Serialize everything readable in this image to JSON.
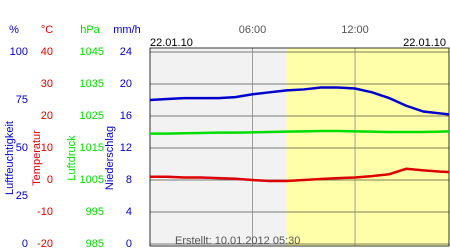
{
  "chart_data": {
    "type": "line",
    "date_left": "22.01.10",
    "date_right": "22.01.10",
    "footer": "Erstellt: 10.01.2012 05:30",
    "x": [
      0,
      1,
      2,
      3,
      4,
      5,
      6,
      7,
      8,
      9,
      10,
      11,
      12,
      13,
      14,
      15,
      16,
      17,
      17.5
    ],
    "xlim": [
      0,
      17.5
    ],
    "xticks": [
      {
        "value": 6,
        "label": "06:00"
      },
      {
        "value": 12,
        "label": "12:00"
      }
    ],
    "daylight_start": 8,
    "axes": [
      {
        "unit": "%",
        "title": "Luftfeuchtigkeit",
        "color": "#0000cc",
        "ylim": [
          0,
          100
        ],
        "yticks": [
          0,
          25,
          50,
          75,
          100
        ],
        "values": [
          75,
          75.5,
          76,
          76,
          76,
          76.5,
          78,
          79,
          80,
          80.5,
          81.5,
          81.5,
          81,
          79,
          76,
          72,
          69,
          68,
          67.5
        ]
      },
      {
        "unit": "°C",
        "title": "Temperatur",
        "color": "#dd0000",
        "ylim": [
          -20,
          40
        ],
        "yticks": [
          -20,
          -10,
          0,
          10,
          20,
          30,
          40
        ],
        "values": [
          1,
          1,
          0.8,
          0.8,
          0.6,
          0.4,
          0,
          -0.3,
          -0.3,
          0,
          0.3,
          0.6,
          0.8,
          1.2,
          1.8,
          3.5,
          3,
          2.6,
          2.5
        ]
      },
      {
        "unit": "hPa",
        "title": "Luftdruck",
        "color": "#00dd00",
        "ylim": [
          985,
          1045
        ],
        "yticks": [
          985,
          995,
          1005,
          1015,
          1025,
          1035,
          1045
        ],
        "values": [
          1019.5,
          1019.5,
          1019.6,
          1019.7,
          1019.8,
          1019.8,
          1019.9,
          1020,
          1020.1,
          1020.2,
          1020.3,
          1020.3,
          1020.2,
          1020.1,
          1020,
          1020,
          1020,
          1020.1,
          1020.2
        ]
      },
      {
        "unit": "mm/h",
        "title": "Niederschlag",
        "color": "#0000cc",
        "ylim": [
          0,
          24
        ],
        "yticks": [
          0,
          4,
          8,
          12,
          16,
          20,
          24
        ]
      }
    ]
  }
}
